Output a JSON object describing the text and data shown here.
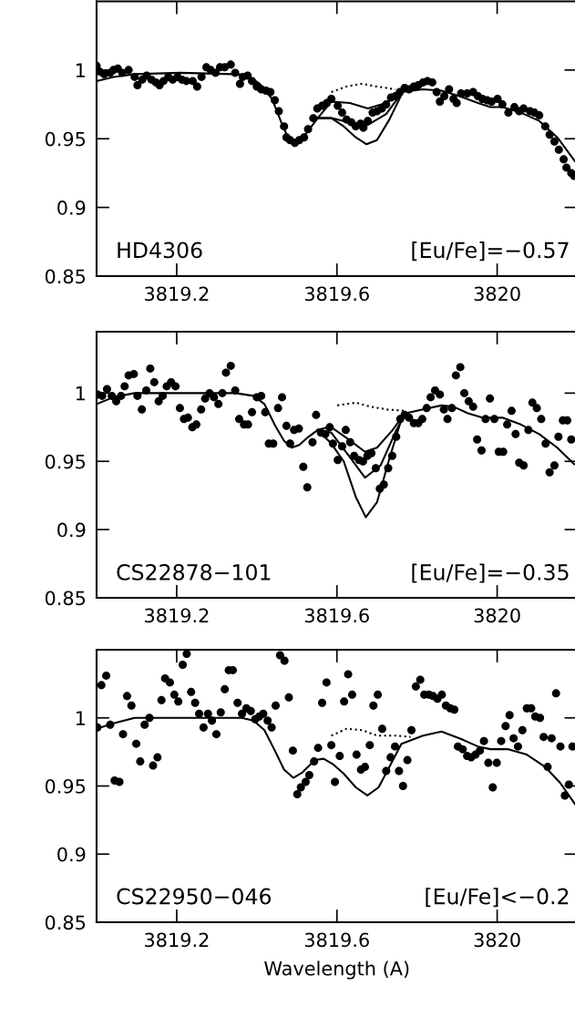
{
  "chart_data": [
    {
      "type": "scatter",
      "xlim": [
        3819.0,
        3820.2
      ],
      "ylim": [
        0.85,
        1.05
      ],
      "xticks": [
        3819.2,
        3819.6,
        3820
      ],
      "yticks": [
        0.85,
        0.9,
        0.95,
        1
      ],
      "grid": false,
      "legend": false,
      "marker": "circle",
      "annotations": [
        "HD4306",
        "[Eu/Fe]=−0.57"
      ],
      "series": [
        {
          "color": "#000000",
          "x": [
            3819.0,
            3819.007,
            3819.019,
            3819.034,
            3819.042,
            3819.053,
            3819.064,
            3819.08,
            3819.095,
            3819.102,
            3819.114,
            3819.125,
            3819.137,
            3819.148,
            3819.157,
            3819.167,
            3819.179,
            3819.19,
            3819.202,
            3819.213,
            3819.224,
            3819.24,
            3819.251,
            3819.262,
            3819.274,
            3819.285,
            3819.297,
            3819.308,
            3819.32,
            3819.335,
            3819.346,
            3819.358,
            3819.365,
            3819.377,
            3819.388,
            3819.4,
            3819.411,
            3819.423,
            3819.434,
            3819.445,
            3819.455,
            3819.468,
            3819.474,
            3819.483,
            3819.495,
            3819.506,
            3819.518,
            3819.528,
            3819.541,
            3819.551,
            3819.563,
            3819.575,
            3819.586,
            3819.602,
            3819.613,
            3819.624,
            3819.636,
            3819.647,
            3819.659,
            3819.666,
            3819.677,
            3819.689,
            3819.7,
            3819.712,
            3819.723,
            3819.735,
            3819.746,
            3819.757,
            3819.769,
            3819.78,
            3819.792,
            3819.803,
            3819.815,
            3819.826,
            3819.838,
            3819.849,
            3819.857,
            3819.868,
            3819.88,
            3819.891,
            3819.899,
            3819.91,
            3819.925,
            3819.94,
            3819.952,
            3819.963,
            3819.975,
            3819.986,
            3820.001,
            3820.013,
            3820.028,
            3820.043,
            3820.055,
            3820.066,
            3820.082,
            3820.093,
            3820.105,
            3820.12,
            3820.131,
            3820.143,
            3820.154,
            3820.166,
            3820.173,
            3820.185,
            3820.192
          ],
          "values": [
            1.003,
            0.999,
            0.997,
            0.998,
            1.0,
            1.001,
            0.998,
            1.0,
            0.995,
            0.989,
            0.993,
            0.996,
            0.993,
            0.991,
            0.989,
            0.992,
            0.995,
            0.993,
            0.995,
            0.993,
            0.992,
            0.992,
            0.988,
            0.995,
            1.002,
            1.0,
            0.998,
            1.002,
            1.002,
            1.004,
            0.998,
            0.99,
            0.995,
            0.996,
            0.992,
            0.988,
            0.986,
            0.985,
            0.984,
            0.978,
            0.97,
            0.959,
            0.951,
            0.949,
            0.947,
            0.949,
            0.951,
            0.957,
            0.965,
            0.972,
            0.974,
            0.976,
            0.979,
            0.974,
            0.969,
            0.964,
            0.962,
            0.959,
            0.961,
            0.958,
            0.963,
            0.969,
            0.97,
            0.972,
            0.975,
            0.98,
            0.981,
            0.984,
            0.987,
            0.986,
            0.988,
            0.989,
            0.991,
            0.992,
            0.991,
            0.984,
            0.977,
            0.981,
            0.986,
            0.979,
            0.976,
            0.983,
            0.983,
            0.984,
            0.981,
            0.979,
            0.978,
            0.977,
            0.979,
            0.975,
            0.969,
            0.973,
            0.97,
            0.972,
            0.97,
            0.969,
            0.967,
            0.959,
            0.953,
            0.948,
            0.942,
            0.935,
            0.929,
            0.925,
            0.923
          ]
        },
        {
          "type": "line",
          "color": "#000000",
          "marker": "none",
          "line_style": "solid",
          "x": [
            3819.0,
            3819.042,
            3819.095,
            3819.209,
            3819.346,
            3819.377,
            3819.407,
            3819.438,
            3819.461,
            3819.476,
            3819.491,
            3819.506,
            3819.529,
            3819.552,
            3819.586,
            3819.632,
            3819.677,
            3819.723,
            3819.761,
            3819.815,
            3819.861,
            3819.906,
            3819.952,
            3819.983,
            3820.013,
            3820.059,
            3820.105,
            3820.15,
            3820.196
          ],
          "values": [
            0.992,
            0.995,
            0.997,
            0.998,
            0.997,
            0.996,
            0.99,
            0.979,
            0.962,
            0.952,
            0.947,
            0.948,
            0.956,
            0.965,
            0.977,
            0.976,
            0.972,
            0.976,
            0.984,
            0.986,
            0.985,
            0.981,
            0.976,
            0.973,
            0.973,
            0.969,
            0.963,
            0.951,
            0.933
          ]
        },
        {
          "type": "line",
          "color": "#000000",
          "marker": "none",
          "line_style": "solid",
          "x": [
            3819.552,
            3819.586,
            3819.632,
            3819.677,
            3819.723,
            3819.761
          ],
          "values": [
            0.965,
            0.965,
            0.962,
            0.96,
            0.968,
            0.983
          ]
        },
        {
          "type": "line",
          "color": "#000000",
          "marker": "none",
          "line_style": "solid",
          "x": [
            3819.552,
            3819.586,
            3819.617,
            3819.647,
            3819.674,
            3819.7,
            3819.731,
            3819.761
          ],
          "values": [
            0.965,
            0.965,
            0.959,
            0.951,
            0.946,
            0.949,
            0.964,
            0.982
          ]
        },
        {
          "type": "line",
          "color": "#000000",
          "marker": "none",
          "line_style": "dotted",
          "x": [
            3819.586,
            3819.624,
            3819.662,
            3819.7,
            3819.746
          ],
          "values": [
            0.984,
            0.988,
            0.99,
            0.988,
            0.986
          ]
        }
      ]
    },
    {
      "type": "scatter",
      "xlim": [
        3819.0,
        3820.2
      ],
      "ylim": [
        0.85,
        1.045
      ],
      "xticks": [
        3819.2,
        3819.6,
        3820
      ],
      "yticks": [
        0.85,
        0.9,
        0.95,
        1
      ],
      "grid": false,
      "legend": false,
      "marker": "circle",
      "annotations": [
        "CS22878−101",
        "[Eu/Fe]=−0.35"
      ],
      "series": [
        {
          "color": "#000000",
          "x": [
            3819.003,
            3819.014,
            3819.026,
            3819.038,
            3819.049,
            3819.061,
            3819.07,
            3819.08,
            3819.093,
            3819.102,
            3819.113,
            3819.124,
            3819.134,
            3819.144,
            3819.155,
            3819.165,
            3819.175,
            3819.186,
            3819.197,
            3819.208,
            3819.218,
            3819.228,
            3819.239,
            3819.249,
            3819.261,
            3819.271,
            3819.282,
            3819.293,
            3819.304,
            3819.314,
            3819.323,
            3819.335,
            3819.346,
            3819.356,
            3819.368,
            3819.378,
            3819.388,
            3819.4,
            3819.411,
            3819.421,
            3819.43,
            3819.441,
            3819.453,
            3819.463,
            3819.474,
            3819.483,
            3819.493,
            3819.505,
            3819.516,
            3819.526,
            3819.539,
            3819.548,
            3819.56,
            3819.571,
            3819.582,
            3819.59,
            3819.602,
            3819.613,
            3819.622,
            3819.633,
            3819.643,
            3819.655,
            3819.665,
            3819.676,
            3819.686,
            3819.697,
            3819.707,
            3819.717,
            3819.728,
            3819.738,
            3819.748,
            3819.758,
            3819.769,
            3819.78,
            3819.792,
            3819.803,
            3819.813,
            3819.824,
            3819.834,
            3819.845,
            3819.857,
            3819.867,
            3819.876,
            3819.887,
            3819.897,
            3819.908,
            3819.918,
            3819.929,
            3819.94,
            3819.95,
            3819.961,
            3819.971,
            3819.982,
            3819.993,
            3820.004,
            3820.015,
            3820.025,
            3820.036,
            3820.046,
            3820.055,
            3820.066,
            3820.078,
            3820.088,
            3820.099,
            3820.11,
            3820.121,
            3820.131,
            3820.143,
            3820.153,
            3820.164,
            3820.175,
            3820.185
          ],
          "values": [
            0.999,
            0.998,
            1.003,
            0.998,
            0.994,
            0.998,
            1.005,
            1.013,
            1.014,
            0.998,
            0.988,
            1.002,
            1.018,
            1.008,
            0.994,
            0.998,
            1.005,
            1.008,
            1.005,
            0.989,
            0.981,
            0.982,
            0.975,
            0.977,
            0.988,
            0.996,
            1.0,
            0.997,
            0.992,
            1.0,
            1.015,
            1.02,
            1.002,
            0.981,
            0.977,
            0.977,
            0.986,
            0.997,
            0.998,
            0.986,
            0.963,
            0.963,
            0.989,
            0.997,
            0.976,
            0.963,
            0.973,
            0.974,
            0.946,
            0.931,
            0.964,
            0.984,
            0.971,
            0.97,
            0.975,
            0.963,
            0.951,
            0.961,
            0.973,
            0.964,
            0.954,
            0.951,
            0.95,
            0.954,
            0.956,
            0.945,
            0.93,
            0.933,
            0.945,
            0.954,
            0.968,
            0.981,
            0.984,
            0.982,
            0.978,
            0.978,
            0.981,
            0.989,
            0.997,
            1.002,
            0.999,
            0.988,
            0.981,
            0.989,
            1.013,
            1.019,
            1.0,
            0.994,
            0.99,
            0.966,
            0.958,
            0.981,
            0.996,
            0.981,
            0.957,
            0.957,
            0.977,
            0.987,
            0.97,
            0.949,
            0.947,
            0.973,
            0.993,
            0.989,
            0.981,
            0.963,
            0.942,
            0.947,
            0.968,
            0.98,
            0.98,
            0.966
          ]
        },
        {
          "type": "line",
          "color": "#000000",
          "marker": "none",
          "line_style": "solid",
          "x": [
            3819.0,
            3819.042,
            3819.095,
            3819.209,
            3819.346,
            3819.392,
            3819.419,
            3819.446,
            3819.468,
            3819.487,
            3819.506,
            3819.529,
            3819.552,
            3819.579,
            3819.586,
            3819.625,
            3819.67,
            3819.7,
            3819.739,
            3819.769,
            3819.815,
            3819.861,
            3819.891,
            3819.929,
            3819.963,
            3820.013,
            3820.059,
            3820.105,
            3820.15,
            3820.192
          ],
          "values": [
            0.992,
            0.997,
            1.0,
            1.0,
            1.0,
            0.998,
            0.992,
            0.976,
            0.965,
            0.96,
            0.962,
            0.968,
            0.973,
            0.975,
            0.975,
            0.967,
            0.957,
            0.96,
            0.973,
            0.985,
            0.988,
            0.991,
            0.99,
            0.985,
            0.982,
            0.982,
            0.977,
            0.97,
            0.96,
            0.948
          ]
        },
        {
          "type": "line",
          "color": "#000000",
          "marker": "none",
          "line_style": "solid",
          "x": [
            3819.552,
            3819.586,
            3819.625,
            3819.67,
            3819.709,
            3819.747,
            3819.769
          ],
          "values": [
            0.973,
            0.971,
            0.956,
            0.938,
            0.947,
            0.972,
            0.984
          ]
        },
        {
          "type": "line",
          "color": "#000000",
          "marker": "none",
          "line_style": "solid",
          "x": [
            3819.552,
            3819.586,
            3819.617,
            3819.647,
            3819.672,
            3819.7,
            3819.731,
            3819.761,
            3819.769
          ],
          "values": [
            0.973,
            0.963,
            0.95,
            0.924,
            0.909,
            0.92,
            0.952,
            0.981,
            0.984
          ]
        },
        {
          "type": "line",
          "color": "#000000",
          "marker": "none",
          "line_style": "dotted",
          "x": [
            3819.601,
            3819.647,
            3819.685,
            3819.726,
            3819.769
          ],
          "values": [
            0.991,
            0.993,
            0.99,
            0.988,
            0.987
          ]
        }
      ]
    },
    {
      "type": "scatter",
      "xlim": [
        3819.0,
        3820.2
      ],
      "ylim": [
        0.85,
        1.05
      ],
      "xticks": [
        3819.2,
        3819.6,
        3820
      ],
      "yticks": [
        0.85,
        0.9,
        0.95,
        1
      ],
      "grid": false,
      "legend": false,
      "marker": "circle",
      "xlabel": "Wavelength (A)",
      "annotations": [
        "CS22950−046",
        "[Eu/Fe]<−0.2"
      ],
      "series": [
        {
          "color": "#000000",
          "x": [
            3819.002,
            3819.012,
            3819.024,
            3819.034,
            3819.045,
            3819.057,
            3819.066,
            3819.076,
            3819.087,
            3819.099,
            3819.109,
            3819.12,
            3819.132,
            3819.141,
            3819.152,
            3819.162,
            3819.171,
            3819.183,
            3819.194,
            3819.204,
            3819.215,
            3819.225,
            3819.236,
            3819.246,
            3819.256,
            3819.267,
            3819.278,
            3819.288,
            3819.299,
            3819.31,
            3819.32,
            3819.33,
            3819.34,
            3819.352,
            3819.363,
            3819.374,
            3819.385,
            3819.396,
            3819.406,
            3819.416,
            3819.427,
            3819.437,
            3819.447,
            3819.458,
            3819.469,
            3819.48,
            3819.49,
            3819.501,
            3819.51,
            3819.522,
            3819.531,
            3819.543,
            3819.553,
            3819.563,
            3819.574,
            3819.586,
            3819.595,
            3819.607,
            3819.618,
            3819.628,
            3819.638,
            3819.649,
            3819.66,
            3819.67,
            3819.682,
            3819.691,
            3819.702,
            3819.713,
            3819.723,
            3819.734,
            3819.745,
            3819.755,
            3819.765,
            3819.776,
            3819.786,
            3819.797,
            3819.808,
            3819.818,
            3819.83,
            3819.84,
            3819.851,
            3819.862,
            3819.872,
            3819.883,
            3819.893,
            3819.902,
            3819.914,
            3819.925,
            3819.935,
            3819.946,
            3819.957,
            3819.967,
            3819.978,
            3819.989,
            3819.999,
            3820.01,
            3820.021,
            3820.031,
            3820.041,
            3820.052,
            3820.063,
            3820.074,
            3820.085,
            3820.095,
            3820.107,
            3820.116,
            3820.126,
            3820.136,
            3820.147,
            3820.158,
            3820.169,
            3820.179,
            3820.188
          ],
          "values": [
            0.993,
            1.024,
            1.031,
            0.995,
            0.954,
            0.953,
            0.988,
            1.016,
            1.009,
            0.981,
            0.968,
            0.995,
            1.0,
            0.965,
            0.971,
            1.013,
            1.029,
            1.026,
            1.017,
            1.012,
            1.039,
            1.047,
            1.019,
            1.011,
            1.003,
            0.993,
            1.003,
            0.998,
            0.988,
            1.004,
            1.021,
            1.035,
            1.035,
            1.011,
            1.003,
            1.007,
            1.005,
            0.999,
            1.001,
            1.003,
            0.998,
            0.993,
            1.009,
            1.046,
            1.042,
            1.015,
            0.976,
            0.944,
            0.949,
            0.953,
            0.958,
            0.968,
            0.978,
            1.011,
            1.026,
            0.98,
            0.953,
            0.972,
            1.012,
            1.032,
            1.017,
            0.973,
            0.962,
            0.964,
            0.98,
            1.009,
            1.017,
            0.992,
            0.961,
            0.971,
            0.979,
            0.961,
            0.95,
            0.969,
            0.991,
            1.023,
            1.028,
            1.017,
            1.017,
            1.016,
            1.014,
            1.017,
            1.009,
            1.007,
            1.006,
            0.979,
            0.977,
            0.972,
            0.971,
            0.973,
            0.976,
            0.983,
            0.967,
            0.949,
            0.967,
            0.983,
            0.994,
            1.002,
            0.985,
            0.979,
            0.991,
            1.007,
            1.007,
            1.001,
            1.0,
            0.986,
            0.964,
            0.985,
            1.018,
            0.979,
            0.943,
            0.951,
            0.979
          ]
        },
        {
          "type": "line",
          "color": "#000000",
          "marker": "none",
          "line_style": "solid",
          "x": [
            3819.0,
            3819.042,
            3819.095,
            3819.209,
            3819.362,
            3819.392,
            3819.419,
            3819.445,
            3819.468,
            3819.491,
            3819.514,
            3819.545,
            3819.567,
            3819.59,
            3819.617,
            3819.647,
            3819.676,
            3819.704,
            3819.731,
            3819.761,
            3819.815,
            3819.861,
            3819.906,
            3819.952,
            3819.983,
            3820.028,
            3820.074,
            3820.12,
            3820.158,
            3820.196
          ],
          "values": [
            0.992,
            0.996,
            1.0,
            1.0,
            1.0,
            0.998,
            0.991,
            0.976,
            0.962,
            0.956,
            0.96,
            0.969,
            0.97,
            0.966,
            0.959,
            0.949,
            0.943,
            0.949,
            0.964,
            0.981,
            0.987,
            0.99,
            0.985,
            0.979,
            0.977,
            0.977,
            0.973,
            0.964,
            0.952,
            0.936
          ]
        },
        {
          "type": "line",
          "color": "#000000",
          "marker": "none",
          "line_style": "dotted",
          "x": [
            3819.586,
            3819.624,
            3819.663,
            3819.7,
            3819.746,
            3819.784
          ],
          "values": [
            0.987,
            0.992,
            0.991,
            0.987,
            0.987,
            0.986
          ]
        }
      ]
    }
  ]
}
